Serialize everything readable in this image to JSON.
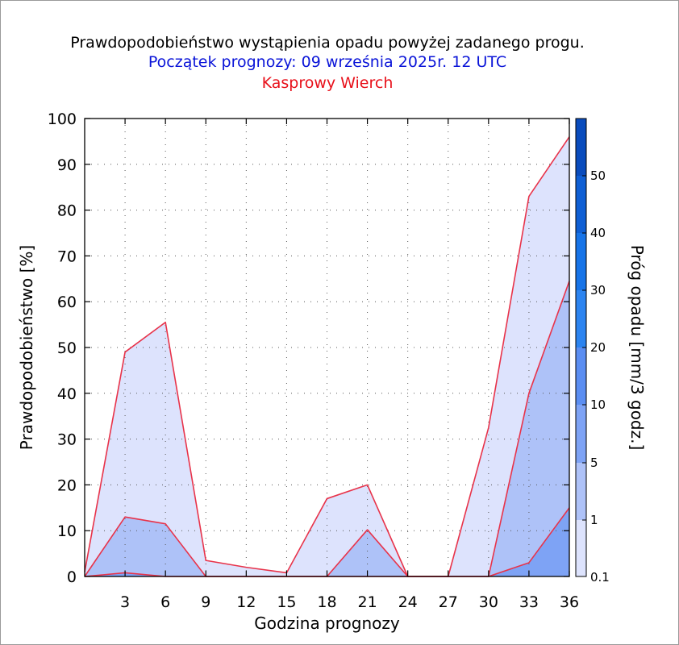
{
  "chart_data": {
    "type": "area",
    "title": "Prawdopodobieństwo wystąpienia opadu powyżej zadanego progu.",
    "subtitle": "Początek prognozy: 09 września 2025r. 12 UTC",
    "location": "Kasprowy Wierch",
    "xlabel": "Godzina prognozy",
    "ylabel": "Prawdopodobieństwo [%]",
    "colorbar_label": "Próg opadu [mm/3 godz.]",
    "xlim": [
      0,
      36
    ],
    "ylim": [
      0,
      100
    ],
    "x_ticks": [
      3,
      6,
      9,
      12,
      15,
      18,
      21,
      24,
      27,
      30,
      33,
      36
    ],
    "y_ticks": [
      0,
      10,
      20,
      30,
      40,
      50,
      60,
      70,
      80,
      90,
      100
    ],
    "x": [
      0,
      3,
      6,
      9,
      12,
      15,
      18,
      21,
      24,
      27,
      30,
      33,
      36
    ],
    "series": [
      {
        "name": "0.1",
        "color": "#dde3fd",
        "values": [
          1,
          49,
          55.5,
          3.5,
          2,
          0.8,
          17,
          20,
          0,
          0,
          32.5,
          83,
          96
        ]
      },
      {
        "name": "1",
        "color": "#aec2f8",
        "values": [
          0,
          13,
          11.5,
          0,
          0,
          0,
          0,
          10.2,
          0,
          0,
          0,
          40,
          64.5
        ]
      },
      {
        "name": "5",
        "color": "#7ea3f5",
        "values": [
          0,
          0.8,
          0,
          0,
          0,
          0,
          0,
          0,
          0,
          0,
          0,
          3,
          15
        ]
      }
    ],
    "colorbar": {
      "tick_labels": [
        "0.1",
        "1",
        "5",
        "10",
        "20",
        "30",
        "40",
        "50"
      ],
      "colors": [
        "#dde3fd",
        "#aec2f8",
        "#7ea3f5",
        "#5b8ef2",
        "#2c84f0",
        "#1774e8",
        "#0f5fd4",
        "#0a4cbd",
        "#0738a0"
      ]
    },
    "line_color": "#e8334a",
    "grid": true
  }
}
